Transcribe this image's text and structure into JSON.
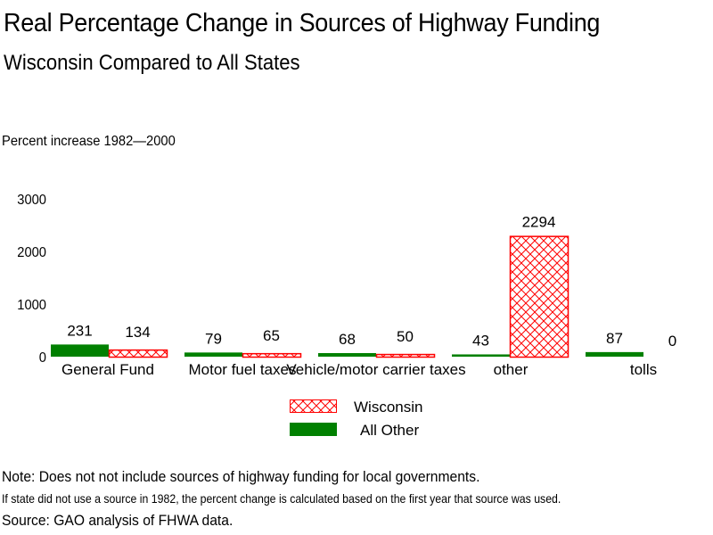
{
  "chart_data": {
    "type": "bar",
    "title": "Real Percentage Change in Sources of Highway Funding",
    "subtitle": "Wisconsin Compared to All States",
    "ylabel": "Percent increase 1982—2000",
    "xlabel": "",
    "ylim": [
      0,
      3000
    ],
    "yticks": [
      0,
      1000,
      2000,
      3000
    ],
    "grid": false,
    "categories": [
      "General Fund",
      "Motor fuel taxes",
      "Vehicle/motor carrier taxes",
      "other",
      "tolls"
    ],
    "series": [
      {
        "name": "All Other",
        "color": "#008000",
        "pattern": "solid",
        "values": [
          231,
          79,
          68,
          43,
          87
        ]
      },
      {
        "name": "Wisconsin",
        "color": "#ff0000",
        "pattern": "crosshatch",
        "values": [
          134,
          65,
          50,
          2294,
          0
        ]
      }
    ],
    "data_labels": {
      "All Other": [
        "231",
        "79",
        "68",
        "43",
        "87"
      ],
      "Wisconsin": [
        "134",
        "65",
        "50",
        "2294",
        "0"
      ]
    },
    "legend": {
      "placement": "bottom-center",
      "entries": [
        "Wisconsin",
        "All Other"
      ]
    }
  },
  "notes": {
    "note": "Note: Does not not include sources of highway funding for local governments.",
    "detail": "If state did not use a source in 1982, the percent change is calculated based on the first year that source was used.",
    "source": "Source: GAO analysis of FHWA data."
  }
}
